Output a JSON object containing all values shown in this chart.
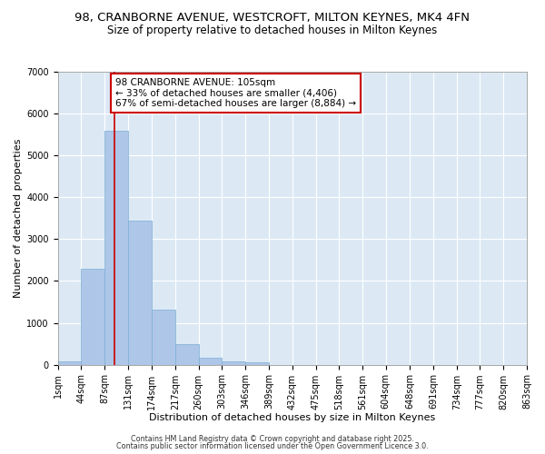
{
  "title": "98, CRANBORNE AVENUE, WESTCROFT, MILTON KEYNES, MK4 4FN",
  "subtitle": "Size of property relative to detached houses in Milton Keynes",
  "xlabel": "Distribution of detached houses by size in Milton Keynes",
  "ylabel": "Number of detached properties",
  "bin_edges": [
    1,
    44,
    87,
    131,
    174,
    217,
    260,
    303,
    346,
    389,
    432,
    475,
    518,
    561,
    604,
    648,
    691,
    734,
    777,
    820,
    863
  ],
  "bin_labels": [
    "1sqm",
    "44sqm",
    "87sqm",
    "131sqm",
    "174sqm",
    "217sqm",
    "260sqm",
    "303sqm",
    "346sqm",
    "389sqm",
    "432sqm",
    "475sqm",
    "518sqm",
    "561sqm",
    "604sqm",
    "648sqm",
    "691sqm",
    "734sqm",
    "777sqm",
    "820sqm",
    "863sqm"
  ],
  "bar_heights": [
    75,
    2300,
    5600,
    3450,
    1320,
    480,
    155,
    70,
    50,
    0,
    0,
    0,
    0,
    0,
    0,
    0,
    0,
    0,
    0,
    0
  ],
  "bar_color": "#aec6e8",
  "bar_edgecolor": "#7aafd4",
  "property_size": 105,
  "vline_color": "#cc0000",
  "annotation_line1": "98 CRANBORNE AVENUE: 105sqm",
  "annotation_line2": "← 33% of detached houses are smaller (4,406)",
  "annotation_line3": "67% of semi-detached houses are larger (8,884) →",
  "annotation_box_color": "#cc0000",
  "ylim": [
    0,
    7000
  ],
  "yticks": [
    0,
    1000,
    2000,
    3000,
    4000,
    5000,
    6000,
    7000
  ],
  "bg_color": "#dce9f5",
  "footer1": "Contains HM Land Registry data © Crown copyright and database right 2025.",
  "footer2": "Contains public sector information licensed under the Open Government Licence 3.0.",
  "title_fontsize": 9.5,
  "subtitle_fontsize": 8.5,
  "xlabel_fontsize": 8.0,
  "ylabel_fontsize": 8.0,
  "tick_fontsize": 7.0,
  "annot_fontsize": 7.5,
  "footer_fontsize": 5.8
}
